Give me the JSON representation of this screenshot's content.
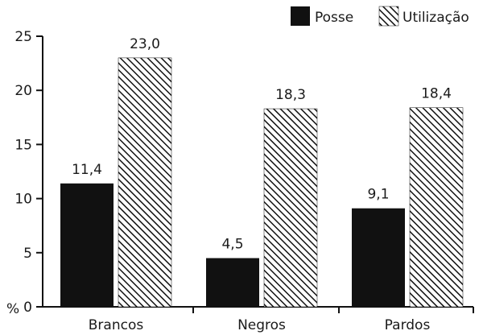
{
  "chart_data": {
    "type": "bar",
    "categories": [
      "Brancos",
      "Negros",
      "Pardos"
    ],
    "series": [
      {
        "name": "Posse",
        "values": [
          11.4,
          4.5,
          9.1
        ],
        "labels": [
          "11,4",
          "4,5",
          "9,1"
        ],
        "color": "#111111",
        "pattern": "solid"
      },
      {
        "name": "Utilização",
        "values": [
          23.0,
          18.3,
          18.4
        ],
        "labels": [
          "23,0",
          "18,3",
          "18,4"
        ],
        "color": "#111111",
        "pattern": "diagonal-hatch"
      }
    ],
    "ylim": [
      0,
      25
    ],
    "yticks": [
      0,
      5,
      10,
      15,
      20,
      25
    ],
    "ytick_labels": [
      "0",
      "5",
      "10",
      "15",
      "20",
      "25"
    ],
    "y_unit_label": "%",
    "legend": "top-right",
    "grid": false
  }
}
